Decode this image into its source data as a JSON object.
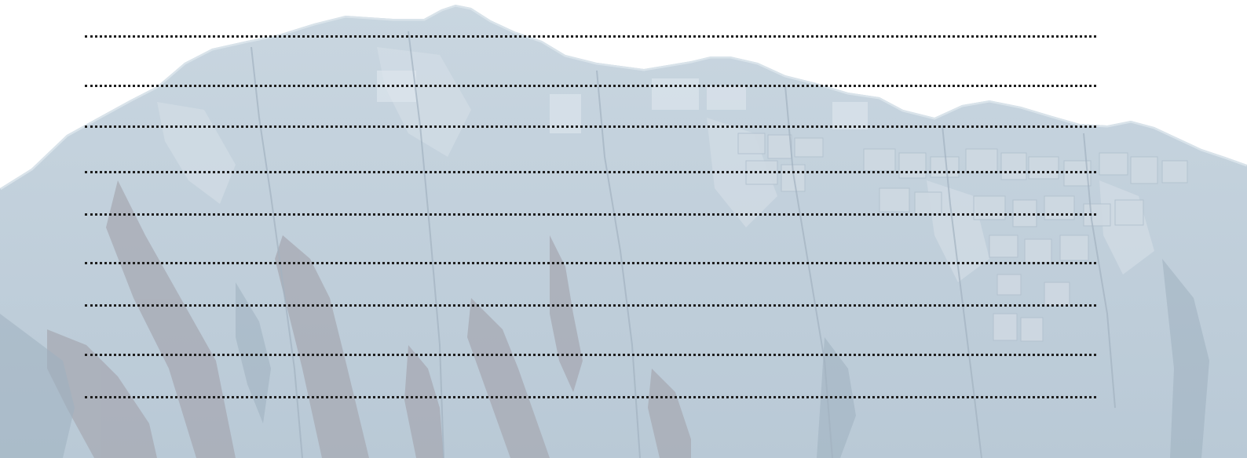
{
  "colors": {
    "background": "#ffffff",
    "terrain_base": "#b9c9d6",
    "terrain_light": "#c9d6e0",
    "terrain_dark": "#9fb0bf",
    "terrain_shadow": "#a7a9b3",
    "fields": "#cfd9e2",
    "line": "#1e1e1e"
  },
  "terrain": {
    "image_name": "coastal-mountain-satellite-relief"
  },
  "writing_lines": {
    "count": 9,
    "style": "dotted"
  }
}
